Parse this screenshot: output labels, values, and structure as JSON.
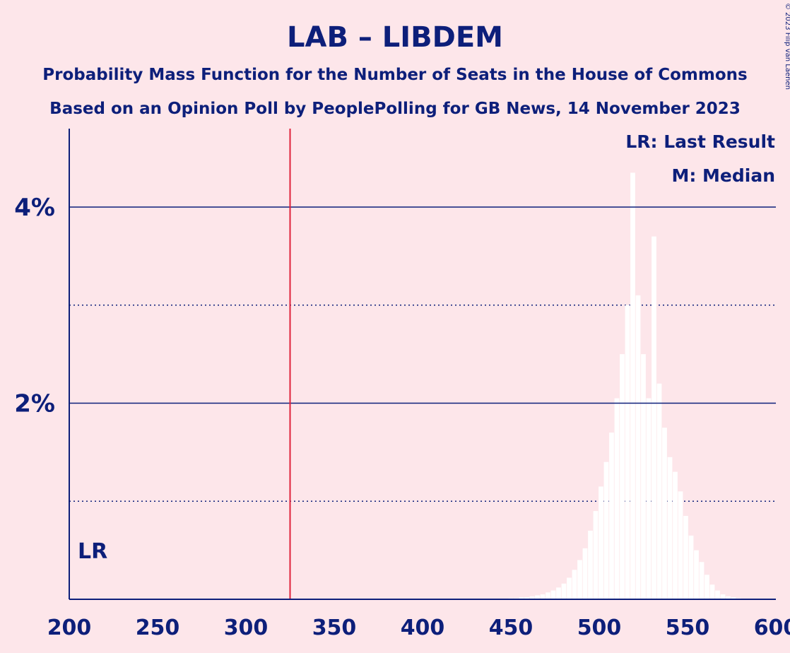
{
  "chart_data": {
    "type": "bar",
    "title": "LAB – LIBDEM",
    "subtitle_1": "Probability Mass Function for the Number of Seats in the House of Commons",
    "subtitle_2": "Based on an Opinion Poll by PeoplePolling for GB News, 14 November 2023",
    "copyright": "© 2023 Filip van Laenen",
    "xlim": [
      200,
      600
    ],
    "ylim": [
      0,
      4.8
    ],
    "x_ticks": [
      {
        "value": 200,
        "label": "200"
      },
      {
        "value": 250,
        "label": "250"
      },
      {
        "value": 300,
        "label": "300"
      },
      {
        "value": 350,
        "label": "350"
      },
      {
        "value": 400,
        "label": "400"
      },
      {
        "value": 450,
        "label": "450"
      },
      {
        "value": 500,
        "label": "500"
      },
      {
        "value": 550,
        "label": "550"
      },
      {
        "value": 600,
        "label": "600"
      }
    ],
    "y_ticks": [
      {
        "value": 2,
        "label": "2%"
      },
      {
        "value": 4,
        "label": "4%"
      }
    ],
    "y_minor_gridlines": [
      1,
      3
    ],
    "last_result": {
      "value": 325,
      "marker": "LR"
    },
    "legend": {
      "placement": "top-right",
      "last_result_label": "LR: Last Result",
      "median_label": "M: Median"
    },
    "colors": {
      "background": "#fde6ea",
      "text": "#0d1f7a",
      "axis": "#0d1f7a",
      "last_result_line": "#e0213b",
      "bars": "#ffffff"
    },
    "x": [
      450,
      453,
      456,
      459,
      462,
      465,
      468,
      471,
      474,
      477,
      480,
      483,
      486,
      489,
      492,
      495,
      498,
      501,
      504,
      507,
      510,
      513,
      516,
      519,
      522,
      525,
      528,
      531,
      534,
      537,
      540,
      543,
      546,
      549,
      552,
      555,
      558,
      561,
      564,
      567,
      570,
      573,
      576,
      579
    ],
    "values": [
      0.01,
      0.01,
      0.02,
      0.02,
      0.03,
      0.04,
      0.05,
      0.07,
      0.09,
      0.12,
      0.16,
      0.22,
      0.3,
      0.4,
      0.52,
      0.7,
      0.9,
      1.15,
      1.4,
      1.7,
      2.05,
      2.5,
      3.0,
      4.35,
      3.1,
      2.5,
      2.05,
      3.7,
      2.2,
      1.75,
      1.45,
      1.3,
      1.1,
      0.85,
      0.65,
      0.5,
      0.38,
      0.25,
      0.15,
      0.09,
      0.05,
      0.03,
      0.02,
      0.01
    ]
  }
}
